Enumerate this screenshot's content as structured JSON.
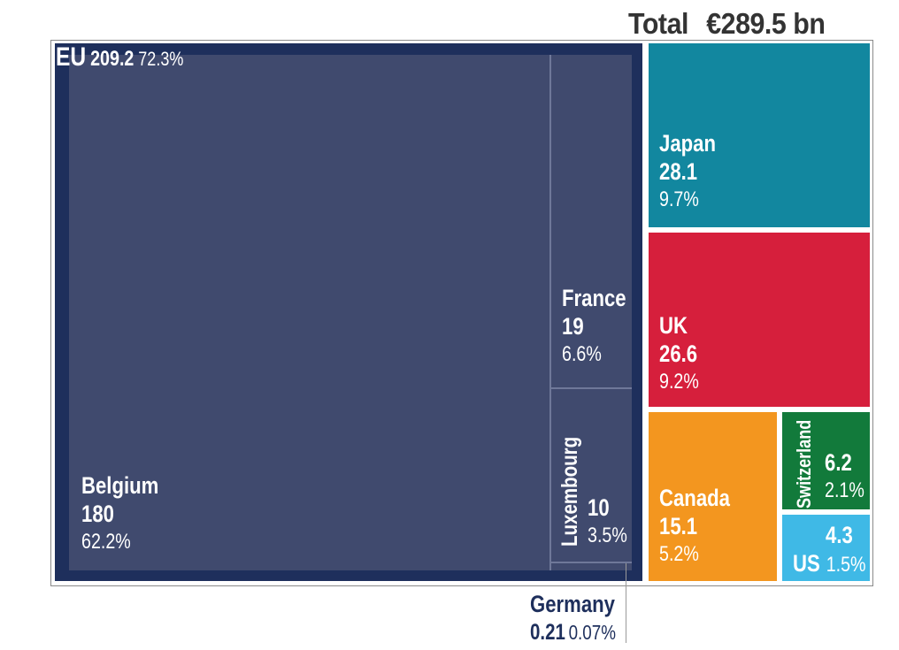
{
  "chart_data": {
    "type": "treemap",
    "total_label": "Total",
    "total_value": "€289.5 bn",
    "groups": [
      {
        "name": "EU",
        "value": 209.2,
        "value_label": "209.2",
        "share": "72.3%",
        "color": "#1e2f5c",
        "children": [
          {
            "name": "Belgium",
            "value": 180,
            "value_label": "180",
            "share": "62.2%",
            "color": "#404a6e"
          },
          {
            "name": "France",
            "value": 19,
            "value_label": "19",
            "share": "6.6%",
            "color": "#404a6e"
          },
          {
            "name": "Luxembourg",
            "value": 10,
            "value_label": "10",
            "share": "3.5%",
            "color": "#404a6e"
          },
          {
            "name": "Germany",
            "value": 0.21,
            "value_label": "0.21",
            "share": "0.07%",
            "color": "#404a6e"
          }
        ]
      },
      {
        "name": "Japan",
        "value": 28.1,
        "value_label": "28.1",
        "share": "9.7%",
        "color": "#12879f"
      },
      {
        "name": "UK",
        "value": 26.6,
        "value_label": "26.6",
        "share": "9.2%",
        "color": "#d61f3c"
      },
      {
        "name": "Canada",
        "value": 15.1,
        "value_label": "15.1",
        "share": "5.2%",
        "color": "#f3961f"
      },
      {
        "name": "Switzerland",
        "value": 6.2,
        "value_label": "6.2",
        "share": "2.1%",
        "color": "#127a3b"
      },
      {
        "name": "US",
        "value": 4.3,
        "value_label": "4.3",
        "share": "1.5%",
        "color": "#3fb9e6"
      }
    ]
  }
}
